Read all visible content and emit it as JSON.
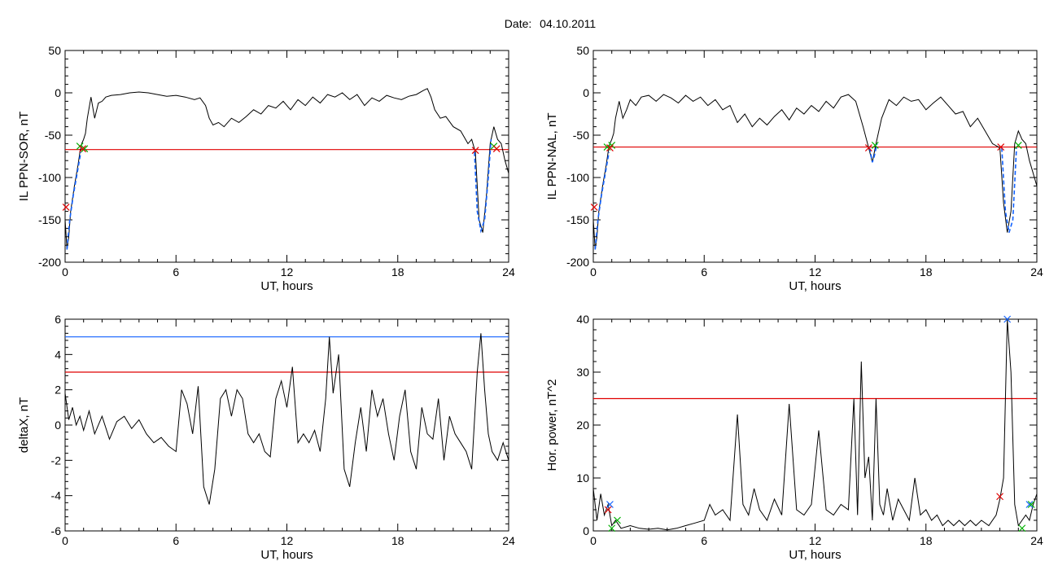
{
  "header": {
    "date_label": "Date:",
    "date_value": "04.10.2011"
  },
  "colors": {
    "trace": "#000000",
    "red_line": "#e00000",
    "blue_line": "#1060ff",
    "green_marker": "#00b000",
    "red_marker": "#e00000",
    "blue_marker": "#1060ff"
  },
  "chart_data": [
    {
      "id": "p1",
      "type": "line",
      "xlabel": "UT, hours",
      "ylabel": "IL PPN-SOR, nT",
      "xlim": [
        0,
        24
      ],
      "ylim": [
        -200,
        50
      ],
      "xticks": [
        0,
        6,
        12,
        18,
        24
      ],
      "yticks": [
        -200,
        -150,
        -100,
        -50,
        0,
        50
      ],
      "series": [
        {
          "color": "#000000",
          "x": [
            0,
            0.1,
            0.2,
            0.3,
            0.5,
            0.7,
            0.8,
            0.9,
            1.0,
            1.1,
            1.2,
            1.4,
            1.6,
            1.8,
            2.0,
            2.2,
            2.5,
            3.0,
            3.5,
            4.0,
            4.5,
            5.0,
            5.5,
            6.0,
            6.5,
            7.0,
            7.3,
            7.6,
            7.8,
            8.0,
            8.3,
            8.6,
            9.0,
            9.4,
            9.8,
            10.2,
            10.6,
            11.0,
            11.4,
            11.8,
            12.2,
            12.6,
            13.0,
            13.4,
            13.8,
            14.2,
            14.6,
            15.0,
            15.4,
            15.8,
            16.2,
            16.6,
            17.0,
            17.4,
            17.8,
            18.2,
            18.6,
            19.0,
            19.4,
            19.6,
            19.8,
            20.0,
            20.3,
            20.6,
            21.0,
            21.4,
            21.8,
            22.0,
            22.2,
            22.4,
            22.6,
            22.8,
            23.0,
            23.2,
            23.4,
            23.6,
            23.8,
            24.0
          ],
          "y": [
            -150,
            -185,
            -170,
            -140,
            -110,
            -85,
            -70,
            -60,
            -55,
            -48,
            -30,
            -5,
            -30,
            -12,
            -10,
            -5,
            -3,
            -2,
            0,
            1,
            0,
            -2,
            -4,
            -3,
            -5,
            -8,
            -6,
            -15,
            -30,
            -38,
            -35,
            -40,
            -30,
            -35,
            -28,
            -20,
            -25,
            -15,
            -18,
            -10,
            -20,
            -8,
            -15,
            -5,
            -12,
            -2,
            -5,
            0,
            -8,
            -2,
            -15,
            -6,
            -10,
            -3,
            -6,
            -8,
            -4,
            -2,
            3,
            5,
            -5,
            -20,
            -30,
            -28,
            -40,
            -45,
            -60,
            -55,
            -70,
            -150,
            -165,
            -120,
            -60,
            -40,
            -55,
            -60,
            -80,
            -95
          ]
        }
      ],
      "blue_segments": [
        {
          "x": [
            0.1,
            0.25,
            0.45,
            0.65,
            0.85
          ],
          "y": [
            -185,
            -150,
            -120,
            -95,
            -70
          ]
        },
        {
          "x": [
            22.15,
            22.3,
            22.5,
            22.7,
            22.9,
            23.05
          ],
          "y": [
            -70,
            -140,
            -163,
            -150,
            -100,
            -55
          ]
        }
      ],
      "hlines": [
        {
          "y": -67,
          "color": "#e00000"
        }
      ],
      "markers": [
        {
          "x": 0.05,
          "y": -135,
          "color": "#e00000"
        },
        {
          "x": 0.8,
          "y": -63,
          "color": "#00b000"
        },
        {
          "x": 1.05,
          "y": -66,
          "color": "#00b000"
        },
        {
          "x": 0.95,
          "y": -66,
          "color": "#e00000"
        },
        {
          "x": 22.2,
          "y": -68,
          "color": "#e00000"
        },
        {
          "x": 23.2,
          "y": -63,
          "color": "#00b000"
        },
        {
          "x": 23.35,
          "y": -66,
          "color": "#e00000"
        }
      ]
    },
    {
      "id": "p2",
      "type": "line",
      "xlabel": "UT, hours",
      "ylabel": "IL PPN-NAL, nT",
      "xlim": [
        0,
        24
      ],
      "ylim": [
        -200,
        50
      ],
      "xticks": [
        0,
        6,
        12,
        18,
        24
      ],
      "yticks": [
        -200,
        -150,
        -100,
        -50,
        0,
        50
      ],
      "series": [
        {
          "color": "#000000",
          "x": [
            0,
            0.1,
            0.2,
            0.3,
            0.5,
            0.7,
            0.8,
            0.9,
            1.0,
            1.1,
            1.2,
            1.4,
            1.6,
            1.8,
            2.0,
            2.3,
            2.6,
            3.0,
            3.4,
            3.8,
            4.2,
            4.6,
            5.0,
            5.4,
            5.8,
            6.2,
            6.6,
            7.0,
            7.4,
            7.8,
            8.2,
            8.6,
            9.0,
            9.4,
            9.8,
            10.2,
            10.6,
            11.0,
            11.4,
            11.8,
            12.2,
            12.6,
            13.0,
            13.4,
            13.8,
            14.2,
            14.6,
            14.9,
            15.1,
            15.3,
            15.6,
            16.0,
            16.4,
            16.8,
            17.2,
            17.6,
            18.0,
            18.4,
            18.8,
            19.2,
            19.6,
            20.0,
            20.4,
            20.8,
            21.2,
            21.6,
            22.0,
            22.2,
            22.4,
            22.6,
            22.8,
            23.0,
            23.2,
            23.4,
            23.6,
            23.8,
            24.0
          ],
          "y": [
            -150,
            -185,
            -170,
            -140,
            -110,
            -85,
            -70,
            -60,
            -55,
            -48,
            -30,
            -10,
            -30,
            -20,
            -8,
            -15,
            -5,
            -3,
            -10,
            -2,
            -6,
            -12,
            -3,
            -10,
            -5,
            -15,
            -8,
            -20,
            -15,
            -35,
            -25,
            -40,
            -30,
            -38,
            -28,
            -20,
            -32,
            -18,
            -25,
            -15,
            -22,
            -10,
            -18,
            -5,
            -2,
            -10,
            -40,
            -65,
            -82,
            -60,
            -30,
            -8,
            -15,
            -5,
            -10,
            -8,
            -20,
            -12,
            -5,
            -15,
            -25,
            -22,
            -40,
            -30,
            -45,
            -60,
            -65,
            -130,
            -165,
            -140,
            -60,
            -45,
            -55,
            -60,
            -80,
            -95,
            -110
          ]
        }
      ],
      "blue_segments": [
        {
          "x": [
            0.1,
            0.25,
            0.45,
            0.65,
            0.85
          ],
          "y": [
            -185,
            -150,
            -120,
            -95,
            -70
          ]
        },
        {
          "x": [
            14.95,
            15.1,
            15.2,
            15.35
          ],
          "y": [
            -65,
            -82,
            -75,
            -60
          ]
        },
        {
          "x": [
            22.1,
            22.3,
            22.5,
            22.7,
            22.9
          ],
          "y": [
            -65,
            -140,
            -165,
            -150,
            -65
          ]
        }
      ],
      "hlines": [
        {
          "y": -64,
          "color": "#e00000"
        }
      ],
      "markers": [
        {
          "x": 0.05,
          "y": -135,
          "color": "#e00000"
        },
        {
          "x": 0.75,
          "y": -64,
          "color": "#00b000"
        },
        {
          "x": 1.0,
          "y": -62,
          "color": "#00b000"
        },
        {
          "x": 0.9,
          "y": -65,
          "color": "#e00000"
        },
        {
          "x": 14.9,
          "y": -65,
          "color": "#e00000"
        },
        {
          "x": 15.25,
          "y": -62,
          "color": "#00b000"
        },
        {
          "x": 22.05,
          "y": -64,
          "color": "#e00000"
        },
        {
          "x": 23.0,
          "y": -62,
          "color": "#00b000"
        }
      ]
    },
    {
      "id": "p3",
      "type": "line",
      "xlabel": "UT, hours",
      "ylabel": "deltaX, nT",
      "xlim": [
        0,
        24
      ],
      "ylim": [
        -6,
        6
      ],
      "xticks": [
        0,
        6,
        12,
        18,
        24
      ],
      "yticks": [
        -6,
        -4,
        -2,
        0,
        2,
        4,
        6
      ],
      "series": [
        {
          "color": "#000000",
          "x": [
            0,
            0.2,
            0.4,
            0.6,
            0.8,
            1.0,
            1.3,
            1.6,
            2.0,
            2.4,
            2.8,
            3.2,
            3.6,
            4.0,
            4.4,
            4.8,
            5.2,
            5.6,
            6.0,
            6.3,
            6.6,
            6.9,
            7.2,
            7.5,
            7.8,
            8.1,
            8.4,
            8.7,
            9.0,
            9.3,
            9.6,
            9.9,
            10.2,
            10.5,
            10.8,
            11.1,
            11.4,
            11.7,
            12.0,
            12.3,
            12.6,
            12.9,
            13.2,
            13.5,
            13.8,
            14.1,
            14.3,
            14.5,
            14.8,
            15.1,
            15.4,
            15.7,
            16.0,
            16.3,
            16.6,
            16.9,
            17.2,
            17.5,
            17.8,
            18.1,
            18.4,
            18.7,
            19.0,
            19.3,
            19.6,
            19.9,
            20.2,
            20.5,
            20.8,
            21.1,
            21.4,
            21.7,
            22.0,
            22.3,
            22.5,
            22.7,
            22.9,
            23.1,
            23.4,
            23.7,
            24.0
          ],
          "y": [
            1.8,
            0.3,
            1.0,
            0.0,
            0.5,
            -0.3,
            0.8,
            -0.5,
            0.5,
            -0.8,
            0.2,
            0.5,
            -0.2,
            0.3,
            -0.5,
            -1.0,
            -0.7,
            -1.2,
            -1.5,
            2.0,
            1.2,
            -0.5,
            2.2,
            -3.5,
            -4.5,
            -2.5,
            1.5,
            2.0,
            0.5,
            2.0,
            1.5,
            -0.5,
            -1.0,
            -0.5,
            -1.5,
            -1.8,
            1.5,
            2.5,
            1.0,
            3.3,
            -1.0,
            -0.5,
            -1.0,
            -0.3,
            -1.5,
            1.5,
            5.0,
            1.8,
            4.0,
            -2.5,
            -3.5,
            -1.0,
            1.0,
            -1.5,
            2.0,
            0.5,
            1.5,
            -0.5,
            -2.0,
            0.5,
            2.0,
            -1.5,
            -2.5,
            1.0,
            -0.5,
            -0.8,
            1.5,
            -2.0,
            0.5,
            -0.5,
            -1.0,
            -1.5,
            -2.5,
            3.0,
            5.2,
            2.0,
            -0.5,
            -1.5,
            -2.0,
            -1.0,
            -2.0
          ]
        }
      ],
      "hlines": [
        {
          "y": 5,
          "color": "#1060ff"
        },
        {
          "y": 3,
          "color": "#e00000"
        }
      ],
      "markers": []
    },
    {
      "id": "p4",
      "type": "line",
      "xlabel": "UT, hours",
      "ylabel": "Hor. power, nT^2",
      "xlim": [
        0,
        24
      ],
      "ylim": [
        0,
        40
      ],
      "xticks": [
        0,
        6,
        12,
        18,
        24
      ],
      "yticks": [
        0,
        10,
        20,
        30,
        40
      ],
      "series": [
        {
          "color": "#000000",
          "x": [
            0,
            0.2,
            0.4,
            0.6,
            0.8,
            1.0,
            1.2,
            1.5,
            2.0,
            2.5,
            3.0,
            3.5,
            4.0,
            4.5,
            5.0,
            5.5,
            6.0,
            6.3,
            6.6,
            7.0,
            7.4,
            7.8,
            8.1,
            8.4,
            8.7,
            9.0,
            9.4,
            9.8,
            10.2,
            10.6,
            11.0,
            11.4,
            11.8,
            12.2,
            12.6,
            13.0,
            13.4,
            13.8,
            14.1,
            14.3,
            14.5,
            14.7,
            14.9,
            15.1,
            15.3,
            15.5,
            15.7,
            15.9,
            16.2,
            16.5,
            16.8,
            17.1,
            17.4,
            17.7,
            18.0,
            18.3,
            18.6,
            18.9,
            19.2,
            19.5,
            19.8,
            20.1,
            20.4,
            20.7,
            21.0,
            21.4,
            21.8,
            22.0,
            22.2,
            22.4,
            22.6,
            22.8,
            23.0,
            23.2,
            23.4,
            23.6,
            23.8,
            24.0
          ],
          "y": [
            8,
            2,
            7,
            3,
            5,
            1,
            2,
            0.5,
            1,
            0.5,
            0.3,
            0.5,
            0.2,
            0.5,
            1,
            1.5,
            2,
            5,
            3,
            4,
            2,
            22,
            5,
            3,
            8,
            4,
            2,
            6,
            3,
            24,
            4,
            3,
            5,
            19,
            4,
            3,
            5,
            4,
            25,
            3,
            32,
            10,
            14,
            2,
            25,
            5,
            3,
            8,
            2,
            6,
            4,
            2,
            10,
            3,
            4,
            2,
            3,
            1,
            2,
            1,
            2,
            1,
            2,
            1,
            2,
            1,
            3,
            6,
            10,
            40,
            30,
            5,
            1,
            2,
            3,
            2,
            5,
            7
          ]
        }
      ],
      "hlines": [
        {
          "y": 25,
          "color": "#e00000"
        }
      ],
      "markers": [
        {
          "x": 0.8,
          "y": 4,
          "color": "#e00000"
        },
        {
          "x": 0.9,
          "y": 5,
          "color": "#1060ff"
        },
        {
          "x": 1.0,
          "y": 0.5,
          "color": "#00b000"
        },
        {
          "x": 1.3,
          "y": 2,
          "color": "#00b000"
        },
        {
          "x": 22.0,
          "y": 6.5,
          "color": "#e00000"
        },
        {
          "x": 22.4,
          "y": 40,
          "color": "#1060ff"
        },
        {
          "x": 23.2,
          "y": 0.5,
          "color": "#00b000"
        },
        {
          "x": 23.6,
          "y": 5,
          "color": "#1060ff"
        },
        {
          "x": 23.7,
          "y": 5,
          "color": "#00b000"
        }
      ]
    }
  ]
}
